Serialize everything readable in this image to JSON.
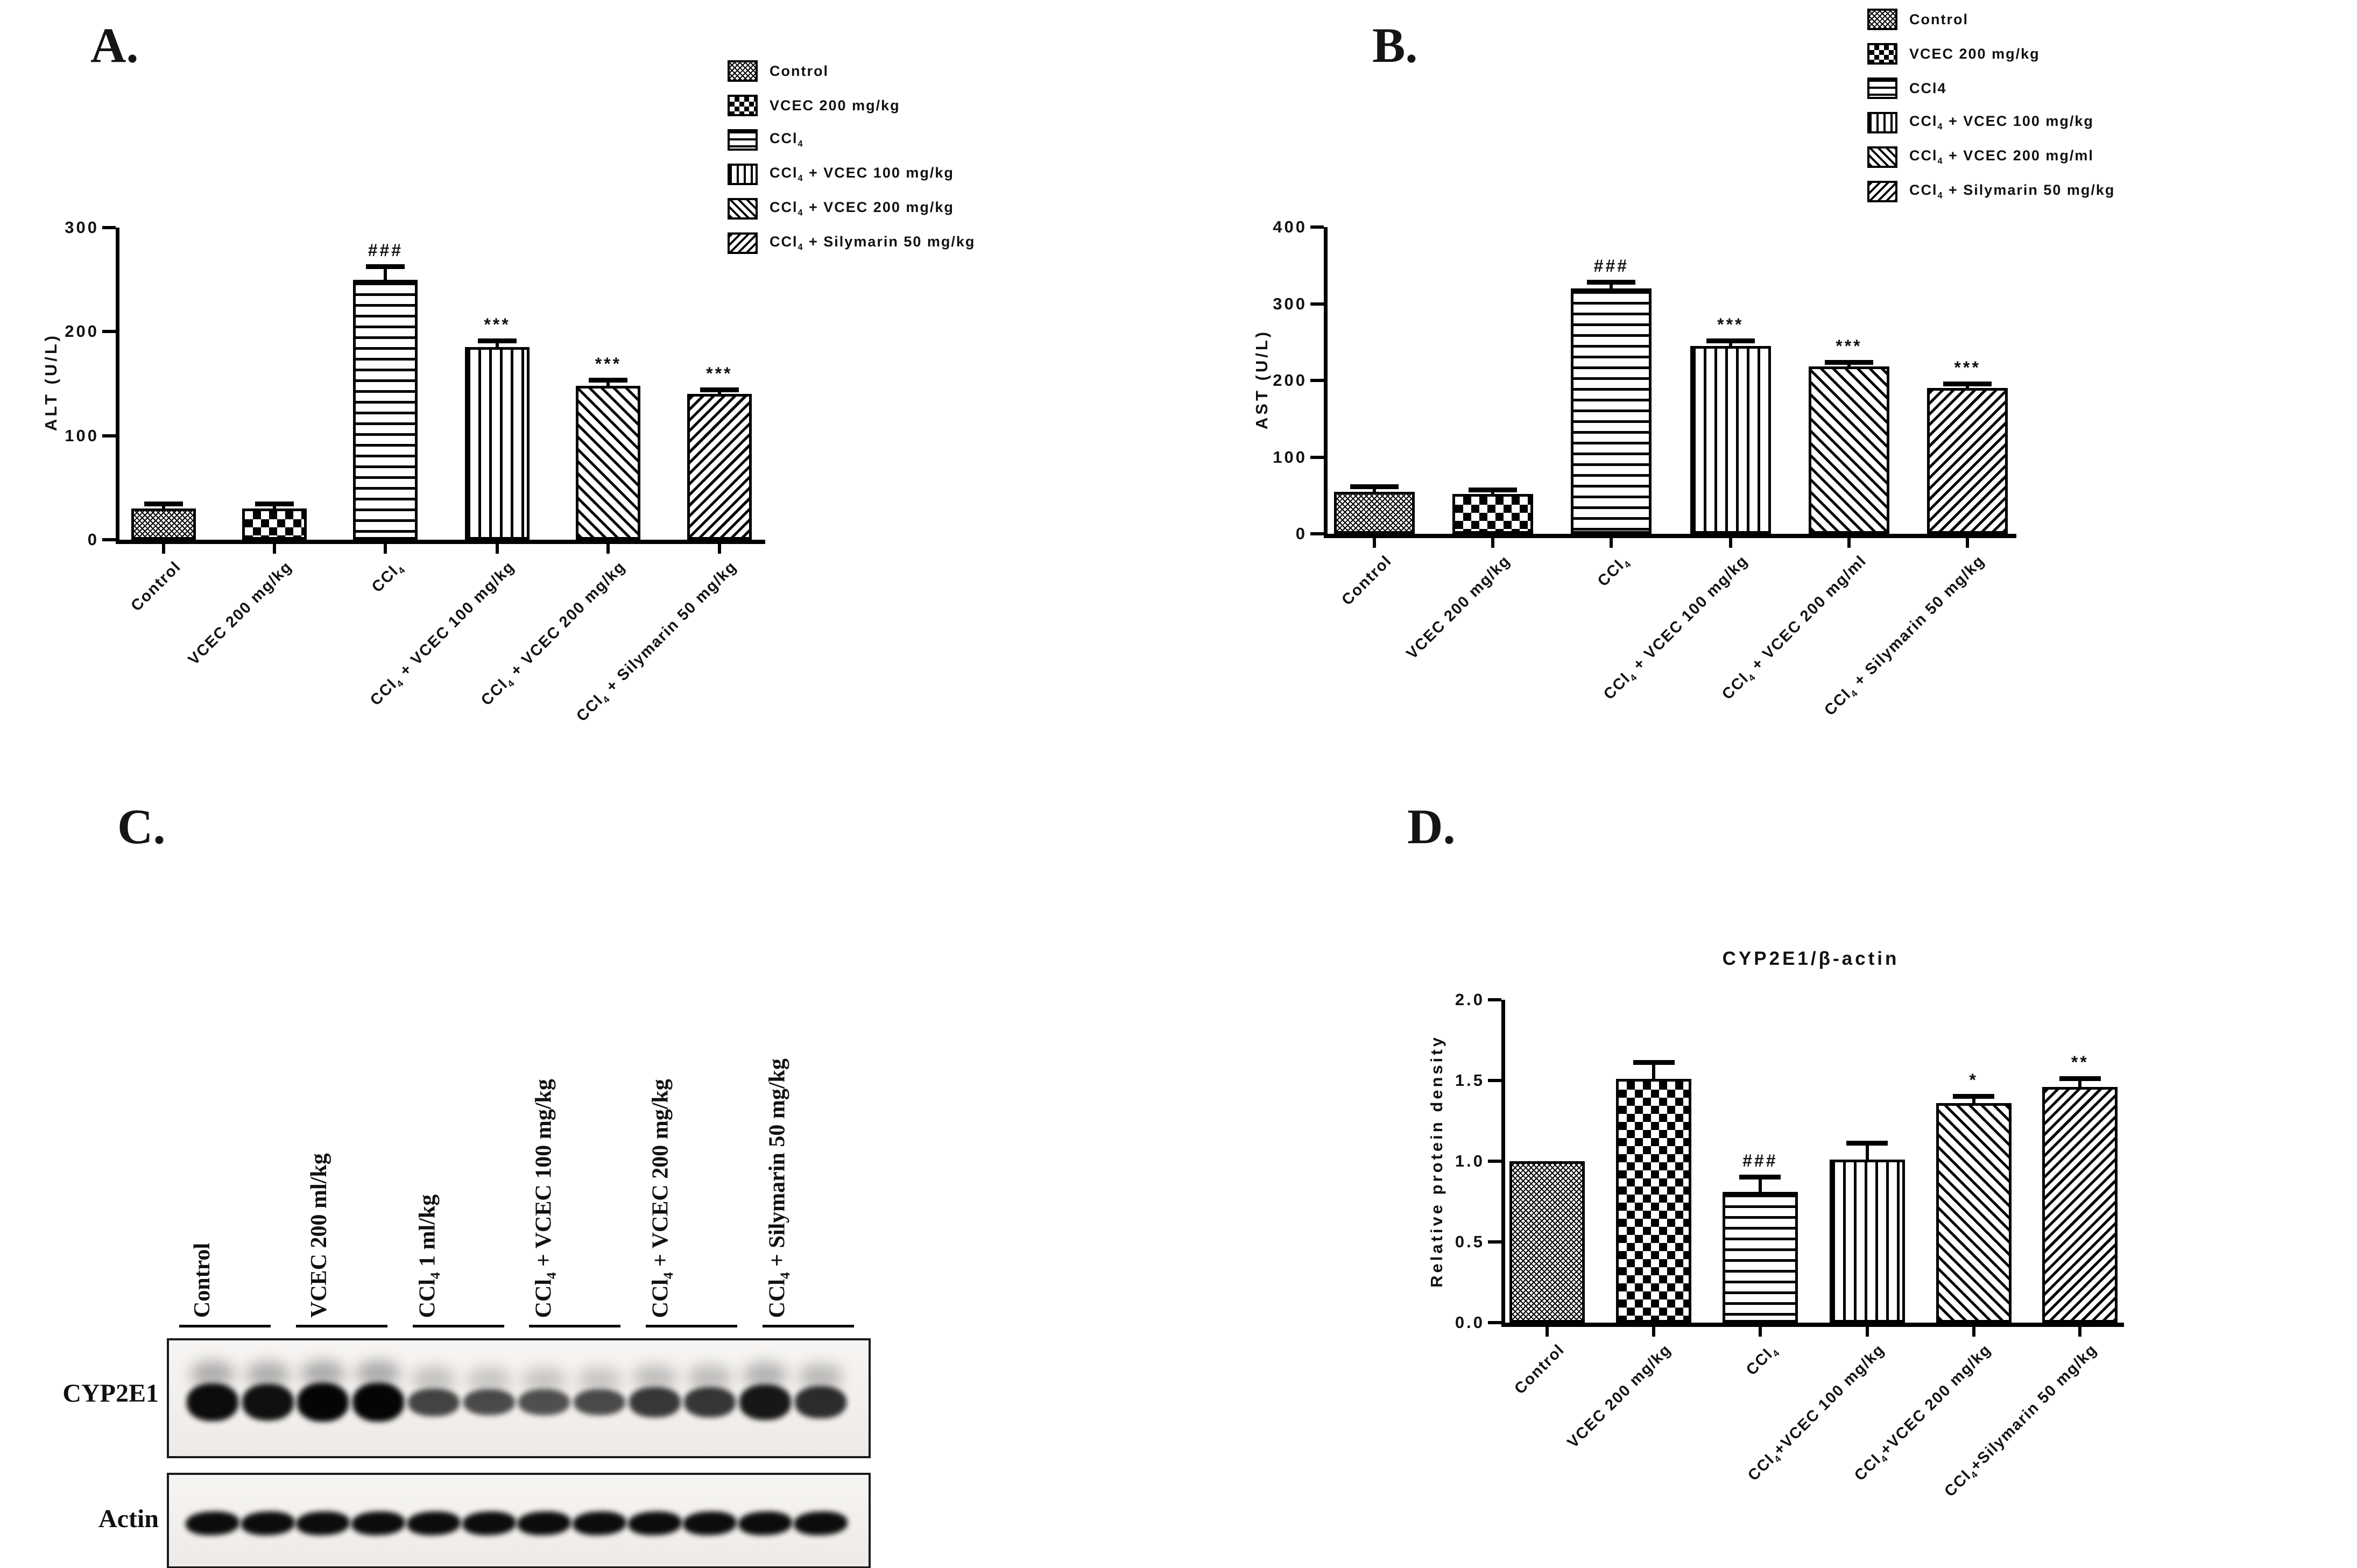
{
  "panels": {
    "a": "A.",
    "b": "B.",
    "c": "C.",
    "d": "D."
  },
  "chart_data": [
    {
      "id": "A",
      "type": "bar",
      "title": "",
      "ylabel": "ALT (U/L)",
      "xlabel": "",
      "ylim": [
        0,
        300
      ],
      "ytick_labels": [
        "0",
        "100",
        "200",
        "300"
      ],
      "grid": false,
      "legend_position": "top-right",
      "categories": [
        "Control",
        "VCEC 200 mg/kg",
        "CCl{4}",
        "CCl{4} + VCEC 100 mg/kg",
        "CCl{4} + VCEC 200 mg/kg",
        "CCl{4} + Silymarin 50 mg/kg"
      ],
      "values": [
        30,
        30,
        250,
        185,
        148,
        140
      ],
      "errors": [
        4,
        4,
        12,
        6,
        5,
        4
      ],
      "annotations": [
        "",
        "",
        "###",
        "***",
        "***",
        "***"
      ],
      "bar_patterns": [
        "mesh",
        "checker",
        "hlines",
        "vlines",
        "diagf",
        "diagb"
      ],
      "legend": [
        {
          "label": "Control",
          "pattern": "mesh"
        },
        {
          "label": "VCEC 200 mg/kg",
          "pattern": "checker"
        },
        {
          "label": "CCl{4}",
          "pattern": "hlines"
        },
        {
          "label": "CCl{4} + VCEC 100 mg/kg",
          "pattern": "vlines"
        },
        {
          "label": "CCl{4} + VCEC 200 mg/kg",
          "pattern": "diagf"
        },
        {
          "label": "CCl{4} + Silymarin 50 mg/kg",
          "pattern": "diagb"
        }
      ]
    },
    {
      "id": "B",
      "type": "bar",
      "title": "",
      "ylabel": "AST (U/L)",
      "xlabel": "",
      "ylim": [
        0,
        400
      ],
      "ytick_labels": [
        "0",
        "100",
        "200",
        "300",
        "400"
      ],
      "grid": false,
      "legend_position": "top-right",
      "categories": [
        "Control",
        "VCEC 200 mg/kg",
        "CCl{4}",
        "CCl{4} + VCEC 100 mg/kg",
        "CCl{4} + VCEC 200 mg/ml",
        "CCl{4} + Silymarin 50 mg/kg"
      ],
      "values": [
        55,
        52,
        320,
        245,
        218,
        190
      ],
      "errors": [
        6,
        5,
        8,
        6,
        5,
        5
      ],
      "annotations": [
        "",
        "",
        "###",
        "***",
        "***",
        "***"
      ],
      "bar_patterns": [
        "mesh",
        "checker",
        "hlines",
        "vlines",
        "diagf",
        "diagb"
      ],
      "legend": [
        {
          "label": "Control",
          "pattern": "mesh"
        },
        {
          "label": "VCEC 200 mg/kg",
          "pattern": "checker"
        },
        {
          "label": "CCl4",
          "pattern": "hlines"
        },
        {
          "label": "CCl{4} + VCEC 100 mg/kg",
          "pattern": "vlines"
        },
        {
          "label": "CCl{4} + VCEC 200 mg/ml",
          "pattern": "diagf"
        },
        {
          "label": "CCl{4} + Silymarin 50 mg/kg",
          "pattern": "diagb"
        }
      ]
    },
    {
      "id": "D",
      "type": "bar",
      "title": "CYP2E1/β-actin",
      "ylabel": "Relative protein density",
      "xlabel": "",
      "ylim": [
        0,
        2
      ],
      "ytick_labels": [
        "0.0",
        "0.5",
        "1.0",
        "1.5",
        "2.0"
      ],
      "grid": false,
      "legend_position": "none",
      "categories": [
        "Control",
        "VCEC 200 mg/kg",
        "CCl{4}",
        "CCl{4}+VCEC 100 mg/kg",
        "CCl{4}+VCEC 200 mg/kg",
        "CCl{4}+Silymarin 50 mg/kg"
      ],
      "values": [
        1.0,
        1.51,
        0.81,
        1.01,
        1.36,
        1.46
      ],
      "errors": [
        0,
        0.1,
        0.09,
        0.1,
        0.04,
        0.05
      ],
      "annotations": [
        "",
        "",
        "###",
        "",
        "*",
        "**"
      ],
      "bar_patterns": [
        "mesh",
        "checker",
        "hlines",
        "vlines",
        "diagf",
        "diagb"
      ],
      "legend": []
    }
  ],
  "western_blot": {
    "rows": [
      "CYP2E1",
      "Actin"
    ],
    "lane_groups": [
      "Control",
      "VCEC 200 ml/kg",
      "CCl{4} 1 ml/kg",
      "CCl{4} + VCEC 100 mg/kg",
      "CCl{4} + VCEC 200 mg/kg",
      "CCl{4} + Silymarin 50 mg/kg"
    ],
    "lanes_per_group": 2,
    "cyp2e1_band_intensity": [
      0.95,
      0.9,
      1.0,
      1.0,
      0.5,
      0.45,
      0.42,
      0.45,
      0.6,
      0.62,
      0.85,
      0.7
    ],
    "actin_band_intensity": [
      0.95,
      0.95,
      0.95,
      0.95,
      0.95,
      0.95,
      0.95,
      0.95,
      0.95,
      0.95,
      0.95,
      0.95
    ]
  },
  "colors": {
    "ink": "#000000",
    "background": "#ffffff"
  }
}
